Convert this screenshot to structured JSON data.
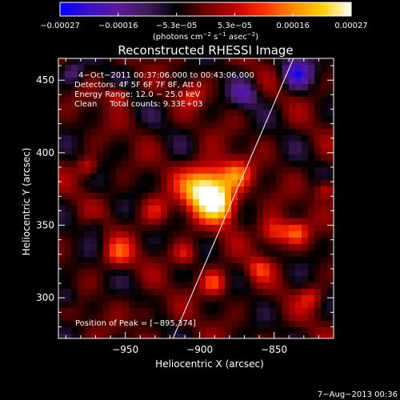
{
  "chart_data": {
    "type": "heatmap",
    "title": "Reconstructed RHESSI Image",
    "xlabel": "Heliocentric X (arcsec)",
    "ylabel": "Heliocentric Y (arcsec)",
    "xlim": [
      -995,
      -810
    ],
    "ylim": [
      272,
      465
    ],
    "x_ticks": [
      -950,
      -900,
      -850
    ],
    "x_tick_labels": [
      "−950",
      "−900",
      "−850"
    ],
    "y_ticks": [
      300,
      350,
      400,
      450
    ],
    "y_tick_labels": [
      "300",
      "350",
      "400",
      "450"
    ],
    "colorbar": {
      "min": -0.00027,
      "max": 0.00027,
      "tick_labels": [
        "−0.00027",
        "−0.00016",
        "−5.3e−05",
        "5.3e−05",
        "0.00016",
        "0.00027"
      ],
      "units_label": "(photons cm",
      "units_exp1": "−2",
      "units_mid": " s",
      "units_exp2": "−1",
      "units_tail": " asec",
      "units_exp3": "−2",
      "units_close": ")",
      "colormap": [
        "#0000ff",
        "#3a10c8",
        "#5a1a9a",
        "#3e1a5c",
        "#000000",
        "#6a0000",
        "#c00000",
        "#ff3000",
        "#ff8a00",
        "#ffd000",
        "#ffffff"
      ]
    },
    "annotations": [
      "4−Oct−2011 00:37:06.000 to 00:43:06.000",
      "Detectors: 4F 5F 6F 7F 8F, Att 0",
      "Energy Range: 12.0 − 25.0 keV",
      "Clean     Total counts: 9.33E+03"
    ],
    "peak_label": "Position of Peak = [−895,374]",
    "peak": [
      -895,
      374
    ],
    "blobs": [
      {
        "x": -895,
        "y": 375,
        "r": 16,
        "v": 0.00034
      },
      {
        "x": -885,
        "y": 362,
        "r": 12,
        "v": 0.00015
      },
      {
        "x": -875,
        "y": 385,
        "r": 10,
        "v": 0.00012
      },
      {
        "x": -930,
        "y": 360,
        "r": 10,
        "v": 0.0001
      },
      {
        "x": -955,
        "y": 330,
        "r": 10,
        "v": 0.00013
      },
      {
        "x": -890,
        "y": 310,
        "r": 9,
        "v": 0.00015
      },
      {
        "x": -850,
        "y": 345,
        "r": 10,
        "v": 0.00016
      },
      {
        "x": -835,
        "y": 345,
        "r": 8,
        "v": 0.00014
      },
      {
        "x": -860,
        "y": 320,
        "r": 8,
        "v": 0.0001
      },
      {
        "x": -975,
        "y": 390,
        "r": 7,
        "v": 0.00011
      },
      {
        "x": -955,
        "y": 440,
        "r": 7,
        "v": 0.00012
      },
      {
        "x": -905,
        "y": 440,
        "r": 8,
        "v": 9e-05
      },
      {
        "x": -815,
        "y": 375,
        "r": 7,
        "v": 0.00013
      },
      {
        "x": -825,
        "y": 300,
        "r": 8,
        "v": 0.0001
      },
      {
        "x": -935,
        "y": 290,
        "r": 8,
        "v": 8e-05
      },
      {
        "x": -910,
        "y": 330,
        "r": 8,
        "v": 0.00011
      },
      {
        "x": -870,
        "y": 440,
        "r": 9,
        "v": -0.00012
      },
      {
        "x": -835,
        "y": 455,
        "r": 10,
        "v": -0.00018
      },
      {
        "x": -985,
        "y": 455,
        "r": 8,
        "v": -0.0001
      },
      {
        "x": -990,
        "y": 300,
        "r": 8,
        "v": -9e-05
      },
      {
        "x": -970,
        "y": 350,
        "r": 6,
        "v": -6e-05
      }
    ],
    "limb_line": [
      [
        -918,
        272
      ],
      [
        -837,
        465
      ]
    ]
  },
  "footer": {
    "timestamp": "7−Aug−2013 00:36"
  }
}
